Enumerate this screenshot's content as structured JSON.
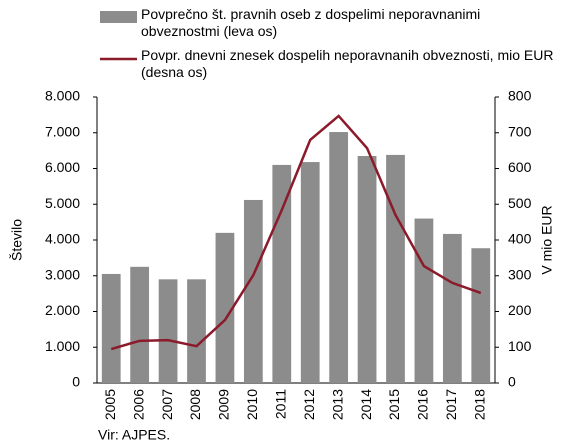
{
  "chart_data": {
    "type": "bar_line",
    "categories": [
      "2005",
      "2006",
      "2007",
      "2008",
      "2009",
      "2010",
      "2011",
      "2012",
      "2013",
      "2014",
      "2015",
      "2016",
      "2017",
      "2018"
    ],
    "series": [
      {
        "name": "Povprečno št. pravnih oseb z dospelimi neporavnanimi obveznostmi (leva os)",
        "color": "#8c8c8c",
        "type": "bar",
        "values": [
          3050,
          3250,
          2900,
          2900,
          4200,
          5120,
          6100,
          6180,
          7020,
          6350,
          6380,
          4600,
          4170,
          3770
        ]
      },
      {
        "name": "Povpr. dnevni znesek dospelih neporavnanih obveznosti, mio EUR (desna os)",
        "color": "#8b1a2b",
        "type": "line",
        "axis": "y2",
        "values": [
          95,
          118,
          120,
          103,
          176,
          302,
          484,
          680,
          747,
          657,
          470,
          327,
          280,
          252
        ]
      }
    ],
    "ylabel": "Število",
    "y2label": "V mio EUR",
    "source": "Vir: AJPES.",
    "ylim": [
      0,
      8000
    ],
    "yticks": [
      {
        "value": 0,
        "label": "0"
      },
      {
        "value": 1000,
        "label": "1.000"
      },
      {
        "value": 2000,
        "label": "2.000"
      },
      {
        "value": 3000,
        "label": "3.000"
      },
      {
        "value": 4000,
        "label": "4.000"
      },
      {
        "value": 5000,
        "label": "5.000"
      },
      {
        "value": 6000,
        "label": "6.000"
      },
      {
        "value": 7000,
        "label": "7.000"
      },
      {
        "value": 8000,
        "label": "8.000"
      }
    ],
    "y2lim": [
      0,
      800
    ],
    "y2ticks": [
      0,
      100,
      200,
      300,
      400,
      500,
      600,
      700,
      800
    ]
  }
}
